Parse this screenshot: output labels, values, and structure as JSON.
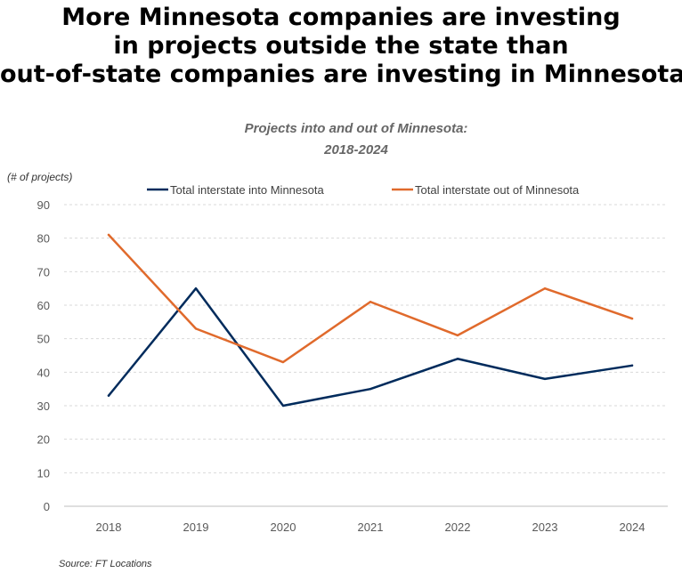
{
  "headline": {
    "line1": "More Minnesota companies are investing",
    "line2": "in projects outside the state than",
    "line3": "out-of-state companies are investing in Minnesota"
  },
  "source": "Source: FT Locations",
  "colors": {
    "into": "#002B5C",
    "out": "#E06A2C",
    "grid": "#D9D9D9"
  },
  "chart_data": {
    "type": "line",
    "title": "Projects into and out of Minnesota:",
    "subtitle": "2018-2024",
    "ylabel": "(# of projects)",
    "xlabel": "",
    "categories": [
      "2018",
      "2019",
      "2020",
      "2021",
      "2022",
      "2023",
      "2024"
    ],
    "ylim": [
      0,
      90
    ],
    "yticks": [
      0,
      10,
      20,
      30,
      40,
      50,
      60,
      70,
      80,
      90
    ],
    "grid": true,
    "legend_position": "top",
    "series": [
      {
        "name": "Total interstate into Minnesota",
        "color": "#002B5C",
        "values": [
          33,
          65,
          30,
          35,
          44,
          38,
          42
        ]
      },
      {
        "name": "Total interstate out of Minnesota",
        "color": "#E06A2C",
        "values": [
          81,
          53,
          43,
          61,
          51,
          65,
          56
        ]
      }
    ]
  }
}
